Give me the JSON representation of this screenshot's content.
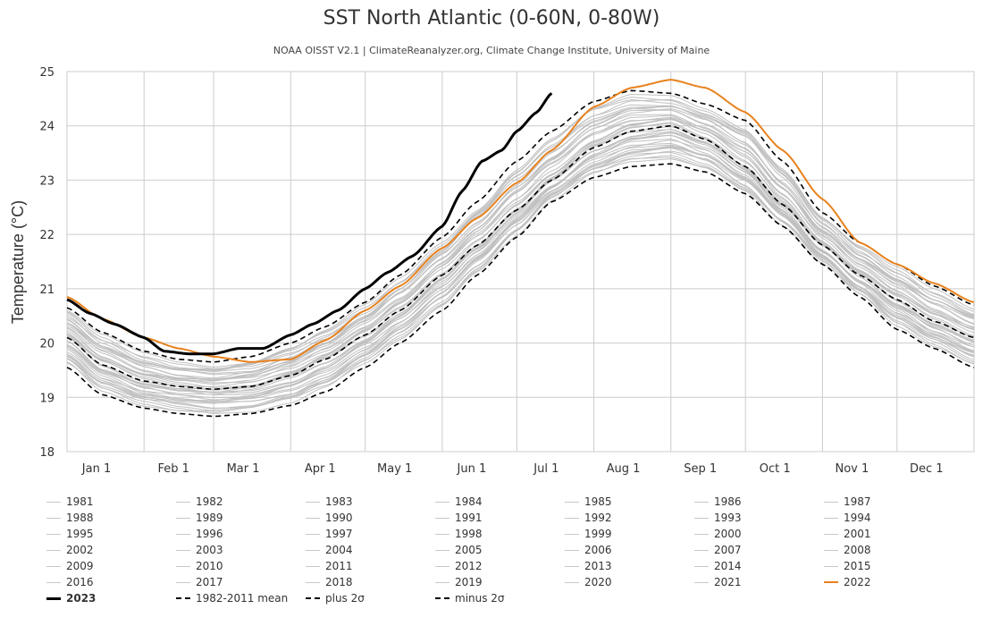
{
  "chart_data": {
    "type": "line",
    "title": "SST North Atlantic (0-60N, 0-80W)",
    "subtitle": "NOAA OISST V2.1 | ClimateReanalyzer.org, Climate Change Institute, University of Maine",
    "ylabel": "Temperature (°C)",
    "xlabel": "",
    "ylim": [
      18,
      25
    ],
    "y_ticks": [
      18,
      19,
      20,
      21,
      22,
      23,
      24,
      25
    ],
    "x_ticks": [
      {
        "label": "Jan 1",
        "day": 1
      },
      {
        "label": "Feb 1",
        "day": 32
      },
      {
        "label": "Mar 1",
        "day": 60
      },
      {
        "label": "Apr 1",
        "day": 91
      },
      {
        "label": "May 1",
        "day": 121
      },
      {
        "label": "Jun 1",
        "day": 152
      },
      {
        "label": "Jul 1",
        "day": 182
      },
      {
        "label": "Aug 1",
        "day": 213
      },
      {
        "label": "Sep 1",
        "day": 244
      },
      {
        "label": "Oct 1",
        "day": 274
      },
      {
        "label": "Nov 1",
        "day": 305
      },
      {
        "label": "Dec 1",
        "day": 335
      }
    ],
    "xlim": [
      1,
      366
    ],
    "grid": true,
    "legend_position": "bottom",
    "mean_series": {
      "name": "1982-2011 mean",
      "x": [
        1,
        15,
        32,
        46,
        60,
        75,
        91,
        105,
        121,
        135,
        152,
        166,
        182,
        196,
        213,
        228,
        244,
        258,
        274,
        289,
        305,
        320,
        335,
        350,
        366
      ],
      "values": [
        20.1,
        19.6,
        19.3,
        19.2,
        19.15,
        19.2,
        19.4,
        19.7,
        20.15,
        20.6,
        21.25,
        21.8,
        22.45,
        23.0,
        23.6,
        23.9,
        24.0,
        23.75,
        23.25,
        22.55,
        21.8,
        21.25,
        20.8,
        20.4,
        20.1
      ],
      "color": "#000000"
    },
    "plus_2sigma": {
      "name": "plus 2σ",
      "x": [
        1,
        15,
        32,
        46,
        60,
        75,
        91,
        105,
        121,
        135,
        152,
        166,
        182,
        196,
        213,
        228,
        244,
        258,
        274,
        289,
        305,
        320,
        335,
        350,
        366
      ],
      "values": [
        20.65,
        20.2,
        19.85,
        19.7,
        19.65,
        19.75,
        20.0,
        20.3,
        20.75,
        21.25,
        21.95,
        22.6,
        23.35,
        23.9,
        24.45,
        24.65,
        24.6,
        24.4,
        24.1,
        23.35,
        22.4,
        21.85,
        21.45,
        21.05,
        20.7
      ],
      "color": "#000000"
    },
    "minus_2sigma": {
      "name": "minus 2σ",
      "x": [
        1,
        15,
        32,
        46,
        60,
        75,
        91,
        105,
        121,
        135,
        152,
        166,
        182,
        196,
        213,
        228,
        244,
        258,
        274,
        289,
        305,
        320,
        335,
        350,
        366
      ],
      "values": [
        19.55,
        19.05,
        18.8,
        18.7,
        18.65,
        18.7,
        18.85,
        19.1,
        19.55,
        20.0,
        20.6,
        21.25,
        21.95,
        22.6,
        23.05,
        23.25,
        23.3,
        23.15,
        22.75,
        22.15,
        21.45,
        20.85,
        20.25,
        19.9,
        19.55
      ],
      "color": "#000000"
    },
    "series_2023": {
      "name": "2023",
      "x": [
        1,
        10,
        20,
        32,
        40,
        50,
        60,
        70,
        80,
        91,
        100,
        110,
        121,
        130,
        140,
        152,
        160,
        168,
        176,
        182,
        190,
        196
      ],
      "values": [
        20.8,
        20.55,
        20.35,
        20.1,
        19.85,
        19.8,
        19.8,
        19.9,
        19.9,
        20.15,
        20.35,
        20.6,
        21.0,
        21.3,
        21.6,
        22.15,
        22.8,
        23.35,
        23.55,
        23.9,
        24.25,
        24.6
      ],
      "color": "#000000"
    },
    "series_2022": {
      "name": "2022",
      "x": [
        1,
        15,
        32,
        46,
        60,
        75,
        91,
        105,
        121,
        135,
        152,
        166,
        182,
        196,
        213,
        228,
        244,
        258,
        274,
        289,
        305,
        320,
        335,
        350,
        366
      ],
      "values": [
        20.85,
        20.45,
        20.1,
        19.9,
        19.75,
        19.65,
        19.7,
        20.05,
        20.6,
        21.05,
        21.75,
        22.3,
        22.95,
        23.55,
        24.35,
        24.7,
        24.85,
        24.7,
        24.25,
        23.55,
        22.65,
        21.85,
        21.45,
        21.1,
        20.75
      ],
      "color": "#e8821e"
    },
    "background_years": [
      "1981",
      "1982",
      "1983",
      "1984",
      "1985",
      "1986",
      "1987",
      "1988",
      "1989",
      "1990",
      "1991",
      "1992",
      "1993",
      "1994",
      "1995",
      "1996",
      "1997",
      "1998",
      "1999",
      "2000",
      "2001",
      "2002",
      "2003",
      "2004",
      "2005",
      "2006",
      "2007",
      "2008",
      "2009",
      "2010",
      "2011",
      "2012",
      "2013",
      "2014",
      "2015",
      "2016",
      "2017",
      "2018",
      "2019",
      "2020",
      "2021"
    ],
    "background_color": "#c0c0c0",
    "legend": [
      {
        "label": "1981",
        "style": "gray"
      },
      {
        "label": "1982",
        "style": "gray"
      },
      {
        "label": "1983",
        "style": "gray"
      },
      {
        "label": "1984",
        "style": "gray"
      },
      {
        "label": "1985",
        "style": "gray"
      },
      {
        "label": "1986",
        "style": "gray"
      },
      {
        "label": "1987",
        "style": "gray"
      },
      {
        "label": "1988",
        "style": "gray"
      },
      {
        "label": "1989",
        "style": "gray"
      },
      {
        "label": "1990",
        "style": "gray"
      },
      {
        "label": "1991",
        "style": "gray"
      },
      {
        "label": "1992",
        "style": "gray"
      },
      {
        "label": "1993",
        "style": "gray"
      },
      {
        "label": "1994",
        "style": "gray"
      },
      {
        "label": "1995",
        "style": "gray"
      },
      {
        "label": "1996",
        "style": "gray"
      },
      {
        "label": "1997",
        "style": "gray"
      },
      {
        "label": "1998",
        "style": "gray"
      },
      {
        "label": "1999",
        "style": "gray"
      },
      {
        "label": "2000",
        "style": "gray"
      },
      {
        "label": "2001",
        "style": "gray"
      },
      {
        "label": "2002",
        "style": "gray"
      },
      {
        "label": "2003",
        "style": "gray"
      },
      {
        "label": "2004",
        "style": "gray"
      },
      {
        "label": "2005",
        "style": "gray"
      },
      {
        "label": "2006",
        "style": "gray"
      },
      {
        "label": "2007",
        "style": "gray"
      },
      {
        "label": "2008",
        "style": "gray"
      },
      {
        "label": "2009",
        "style": "gray"
      },
      {
        "label": "2010",
        "style": "gray"
      },
      {
        "label": "2011",
        "style": "gray"
      },
      {
        "label": "2012",
        "style": "gray"
      },
      {
        "label": "2013",
        "style": "gray"
      },
      {
        "label": "2014",
        "style": "gray"
      },
      {
        "label": "2015",
        "style": "gray"
      },
      {
        "label": "2016",
        "style": "gray"
      },
      {
        "label": "2017",
        "style": "gray"
      },
      {
        "label": "2018",
        "style": "gray"
      },
      {
        "label": "2019",
        "style": "gray"
      },
      {
        "label": "2020",
        "style": "gray"
      },
      {
        "label": "2021",
        "style": "gray"
      },
      {
        "label": "2022",
        "style": "orange"
      },
      {
        "label": "2023",
        "style": "bold"
      },
      {
        "label": "1982-2011 mean",
        "style": "dashed"
      },
      {
        "label": "plus 2σ",
        "style": "dashdot"
      },
      {
        "label": "minus 2σ",
        "style": "dashdot"
      }
    ]
  }
}
